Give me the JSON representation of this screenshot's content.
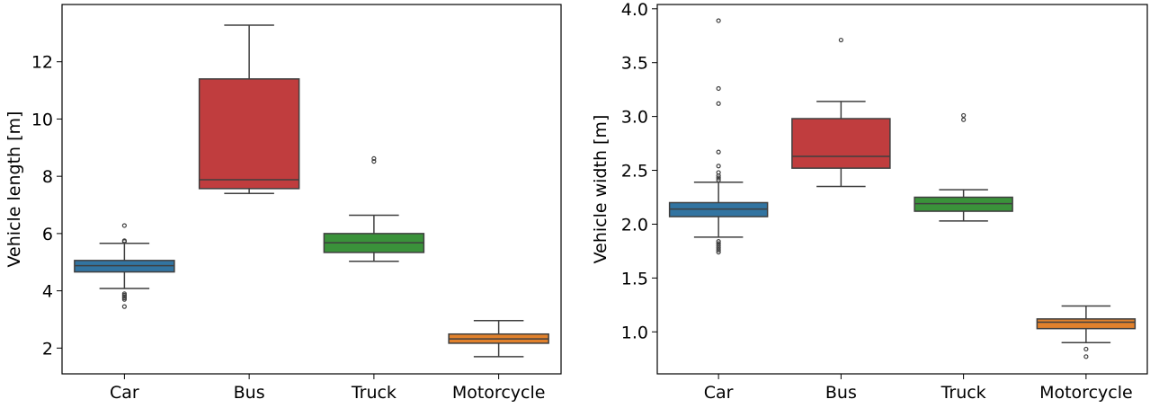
{
  "chart_data": [
    {
      "type": "box",
      "categories": [
        "Car",
        "Bus",
        "Truck",
        "Motorcycle"
      ],
      "colors": [
        "#3274a1",
        "#c03d3e",
        "#3a923a",
        "#e1812c"
      ],
      "ylabel": "Vehicle length [m]",
      "ylim": [
        1.1,
        14.0
      ],
      "yticks": [
        2,
        4,
        6,
        8,
        10,
        12
      ],
      "boxes": [
        {
          "whislo": 4.08,
          "q1": 4.66,
          "med": 4.88,
          "q3": 5.06,
          "whishi": 5.66,
          "fliers": [
            3.45,
            3.7,
            3.75,
            3.8,
            3.85,
            3.9,
            5.72,
            5.75,
            6.28
          ]
        },
        {
          "whislo": 7.4,
          "q1": 7.57,
          "med": 7.88,
          "q3": 11.4,
          "whishi": 13.28,
          "fliers": []
        },
        {
          "whislo": 5.03,
          "q1": 5.34,
          "med": 5.68,
          "q3": 6.0,
          "whishi": 6.64,
          "fliers": [
            8.52,
            8.62
          ]
        },
        {
          "whislo": 1.7,
          "q1": 2.17,
          "med": 2.32,
          "q3": 2.49,
          "whishi": 2.96,
          "fliers": []
        }
      ]
    },
    {
      "type": "box",
      "categories": [
        "Car",
        "Bus",
        "Truck",
        "Motorcycle"
      ],
      "colors": [
        "#3274a1",
        "#c03d3e",
        "#3a923a",
        "#e1812c"
      ],
      "ylabel": "Vehicle width [m]",
      "ylim": [
        0.61,
        4.04
      ],
      "yticks": [
        1.0,
        1.5,
        2.0,
        2.5,
        3.0,
        3.5,
        4.0
      ],
      "yticklabels": [
        "1.0",
        "1.5",
        "2.0",
        "2.5",
        "3.0",
        "3.5",
        "4.0"
      ],
      "boxes": [
        {
          "whislo": 1.88,
          "q1": 2.07,
          "med": 2.14,
          "q3": 2.2,
          "whishi": 2.39,
          "fliers": [
            1.74,
            1.76,
            1.78,
            1.8,
            1.82,
            1.84,
            2.41,
            2.43,
            2.45,
            2.48,
            2.54,
            2.67,
            3.12,
            3.26,
            3.89
          ]
        },
        {
          "whislo": 2.35,
          "q1": 2.52,
          "med": 2.63,
          "q3": 2.98,
          "whishi": 3.14,
          "fliers": [
            3.71
          ]
        },
        {
          "whislo": 2.03,
          "q1": 2.12,
          "med": 2.19,
          "q3": 2.25,
          "whishi": 2.32,
          "fliers": [
            2.97,
            3.01
          ]
        },
        {
          "whislo": 0.9,
          "q1": 1.03,
          "med": 1.09,
          "q3": 1.12,
          "whishi": 1.24,
          "fliers": [
            0.77,
            0.84
          ]
        }
      ]
    }
  ]
}
